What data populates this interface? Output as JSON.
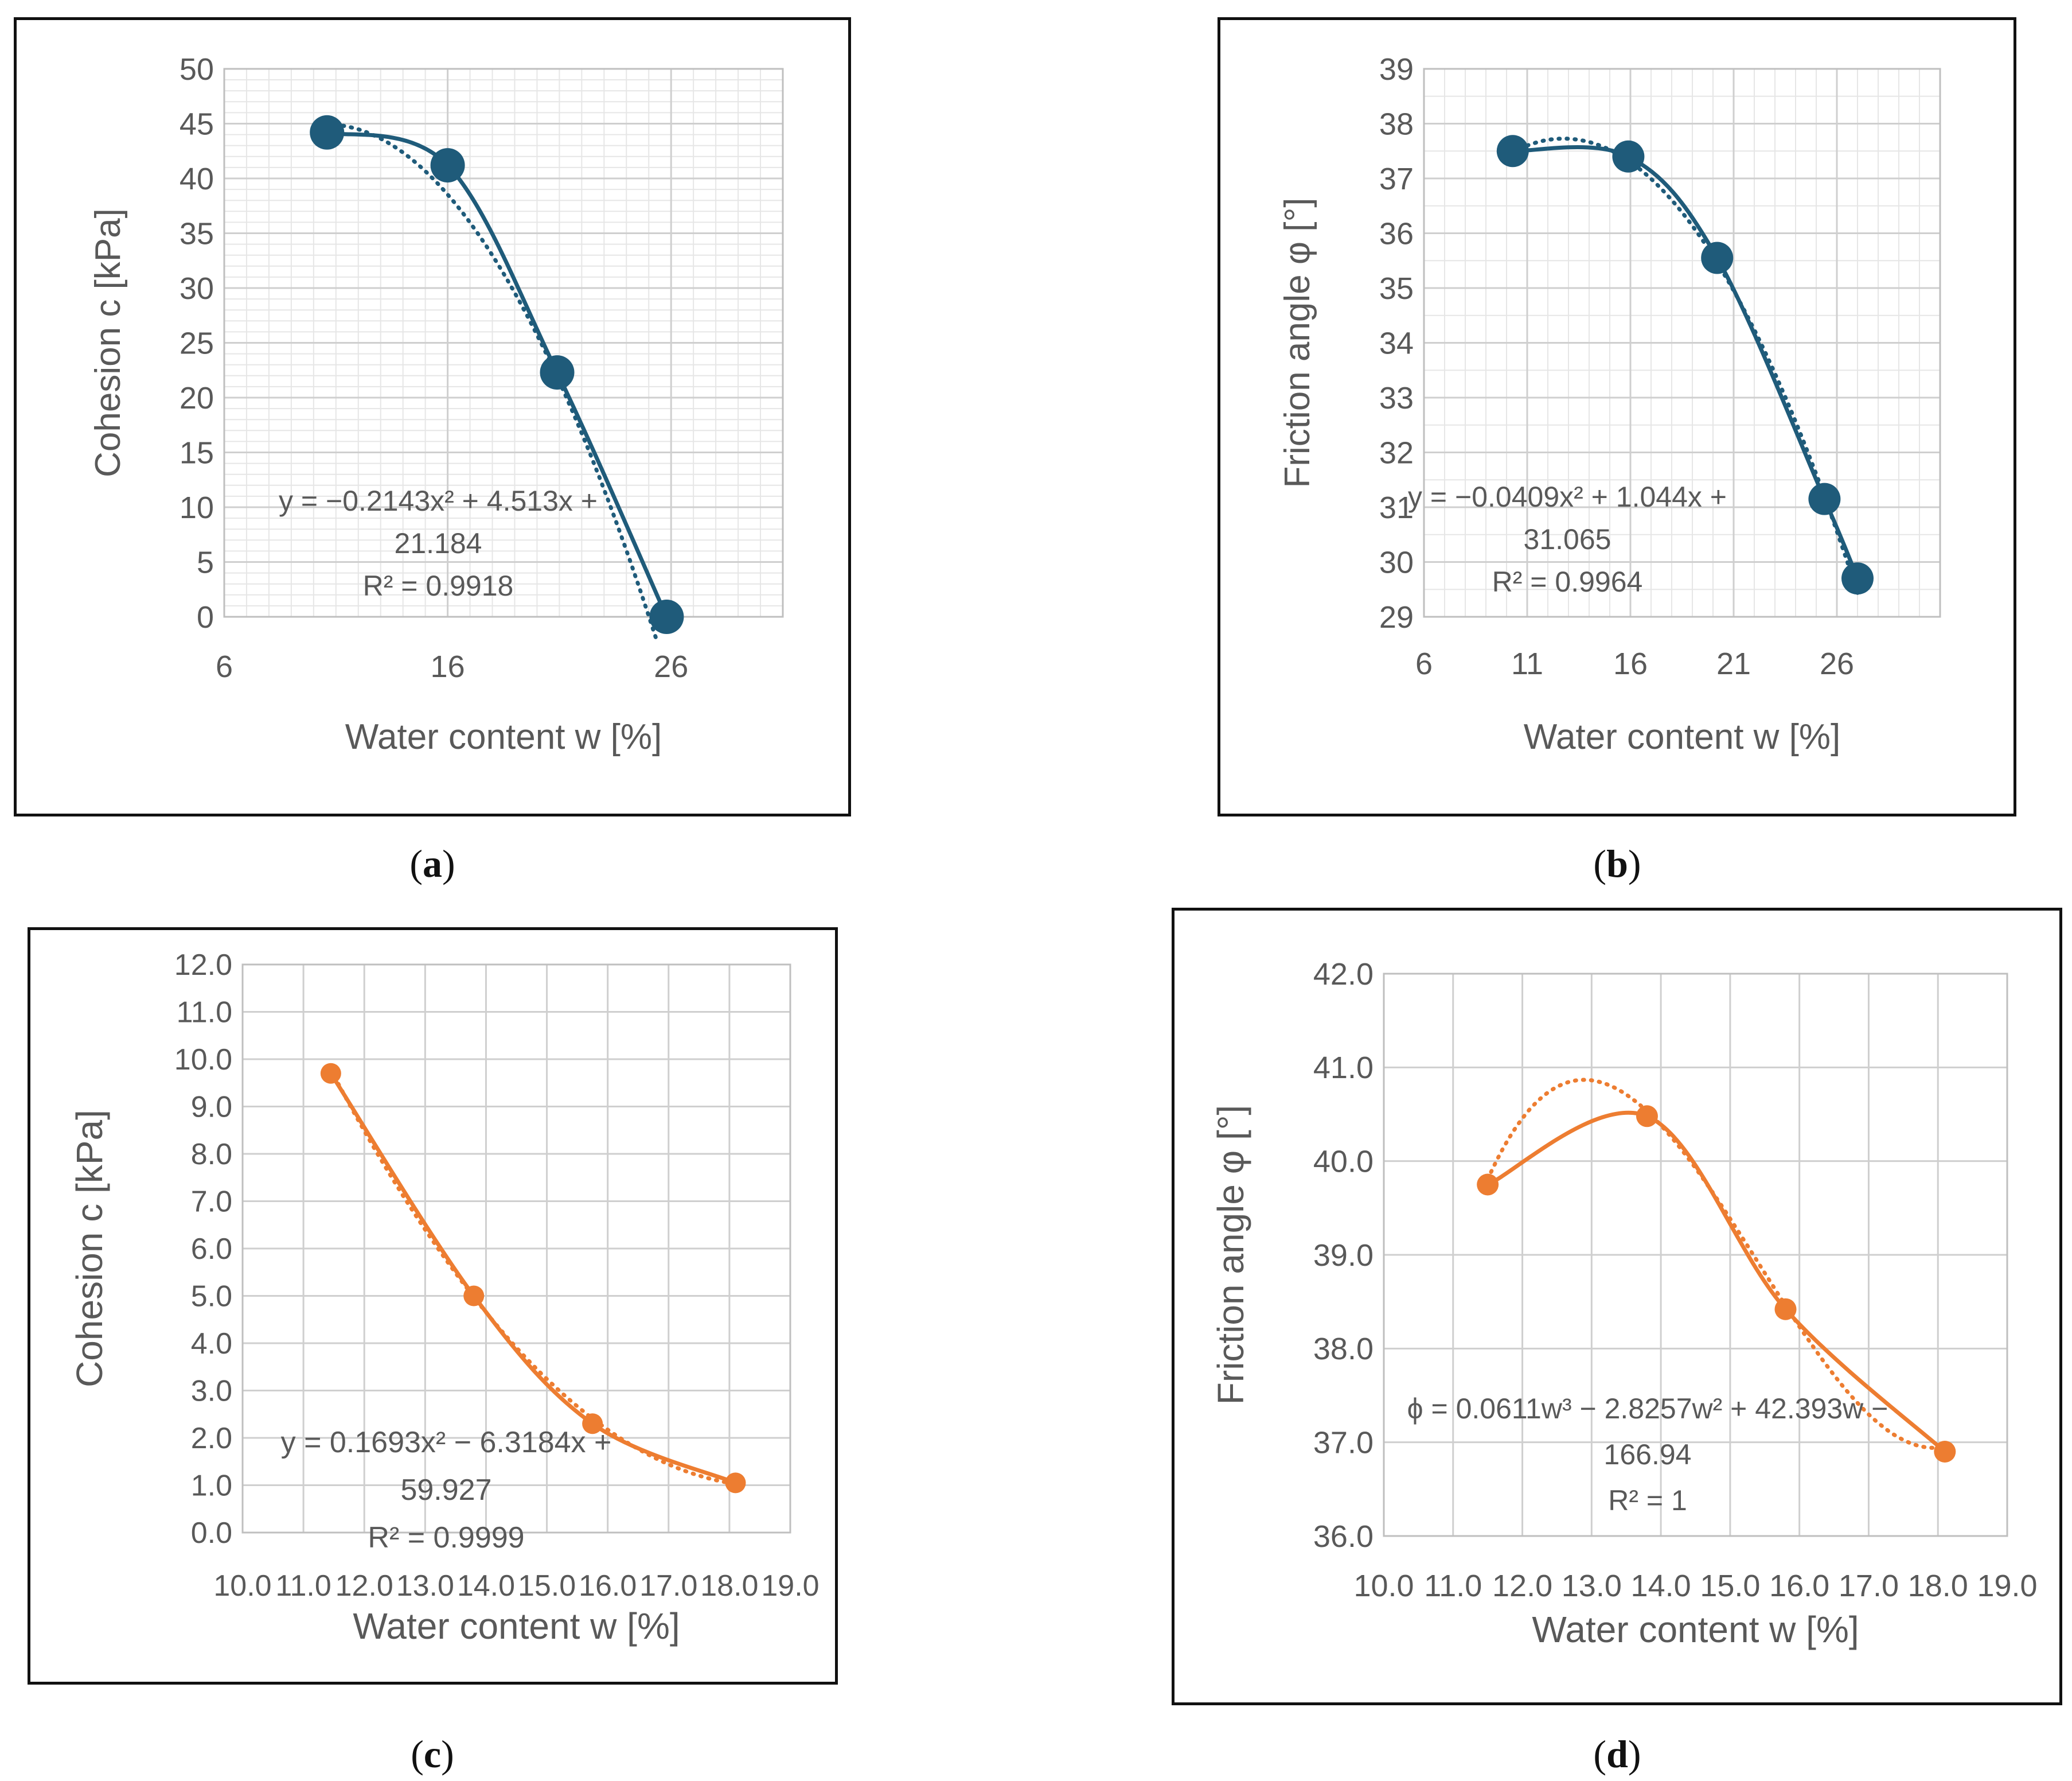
{
  "panels": [
    {
      "caption": "a",
      "chart_data": {
        "type": "scatter",
        "color": "#1f5b7a",
        "title": "",
        "xlabel": "Water content w [%]",
        "ylabel": "Cohesion c [kPa]",
        "xlim": [
          6,
          31
        ],
        "ylim": [
          0,
          50
        ],
        "xticks": [
          6,
          16,
          26
        ],
        "yticks": [
          0,
          5,
          10,
          15,
          20,
          25,
          30,
          35,
          40,
          45,
          50
        ],
        "tick_decimals": 0,
        "x": [
          10.6,
          16.0,
          20.9,
          25.8
        ],
        "y": [
          44.2,
          41.2,
          22.3,
          0.0
        ],
        "trendline": {
          "type": "polynomial",
          "coeffs": [
            21.184,
            4.513,
            -0.2143
          ]
        },
        "equation_lines": [
          "y = −0.2143x² + 4.513x +",
          "21.184",
          "R² = 0.9918"
        ]
      }
    },
    {
      "caption": "b",
      "chart_data": {
        "type": "scatter",
        "color": "#1f5b7a",
        "title": "",
        "xlabel": "Water content w [%]",
        "ylabel": "Friction angle φ [°]",
        "xlim": [
          6,
          31
        ],
        "ylim": [
          29,
          39
        ],
        "xticks": [
          6,
          11,
          16,
          21,
          26
        ],
        "yticks": [
          29,
          30,
          31,
          32,
          33,
          34,
          35,
          36,
          37,
          38,
          39
        ],
        "tick_decimals": 0,
        "x": [
          10.3,
          15.9,
          20.2,
          25.4,
          27.0
        ],
        "y": [
          37.5,
          37.4,
          35.55,
          31.15,
          29.7
        ],
        "trendline": {
          "type": "polynomial",
          "coeffs": [
            31.065,
            1.044,
            -0.0409
          ]
        },
        "equation_lines": [
          "y = −0.0409x² + 1.044x +",
          "31.065",
          "R² = 0.9964"
        ]
      }
    },
    {
      "caption": "c",
      "chart_data": {
        "type": "scatter",
        "color": "#ed7d31",
        "title": "",
        "xlabel": "Water content w [%]",
        "ylabel": "Cohesion c [kPa]",
        "xlim": [
          10,
          19
        ],
        "ylim": [
          0,
          12
        ],
        "xticks": [
          10,
          11,
          12,
          13,
          14,
          15,
          16,
          17,
          18,
          19
        ],
        "yticks": [
          0,
          1,
          2,
          3,
          4,
          5,
          6,
          7,
          8,
          9,
          10,
          11,
          12
        ],
        "tick_decimals": 1,
        "x": [
          11.45,
          13.8,
          15.75,
          18.1
        ],
        "y": [
          9.7,
          5.0,
          2.3,
          1.05
        ],
        "trendline": {
          "type": "polynomial",
          "coeffs": [
            59.927,
            -6.3184,
            0.1693
          ]
        },
        "equation_lines": [
          "y = 0.1693x² − 6.3184x +",
          "59.927",
          "R² = 0.9999"
        ]
      }
    },
    {
      "caption": "d",
      "chart_data": {
        "type": "scatter",
        "color": "#ed7d31",
        "title": "",
        "xlabel": "Water content w [%]",
        "ylabel": "Friction angle φ [°]",
        "xlim": [
          10,
          19
        ],
        "ylim": [
          36,
          42
        ],
        "xticks": [
          10,
          11,
          12,
          13,
          14,
          15,
          16,
          17,
          18,
          19
        ],
        "yticks": [
          36,
          37,
          38,
          39,
          40,
          41,
          42
        ],
        "tick_decimals": 1,
        "x": [
          11.5,
          13.8,
          15.8,
          18.1
        ],
        "y": [
          39.75,
          40.48,
          38.42,
          36.9
        ],
        "trendline": {
          "type": "polynomial",
          "coeffs": [
            -166.94,
            42.393,
            -2.8257,
            0.0611
          ]
        },
        "equation_lines": [
          "ϕ = 0.0611w³ − 2.8257w² + 42.393w −",
          "166.94",
          "R² = 1"
        ]
      }
    }
  ]
}
